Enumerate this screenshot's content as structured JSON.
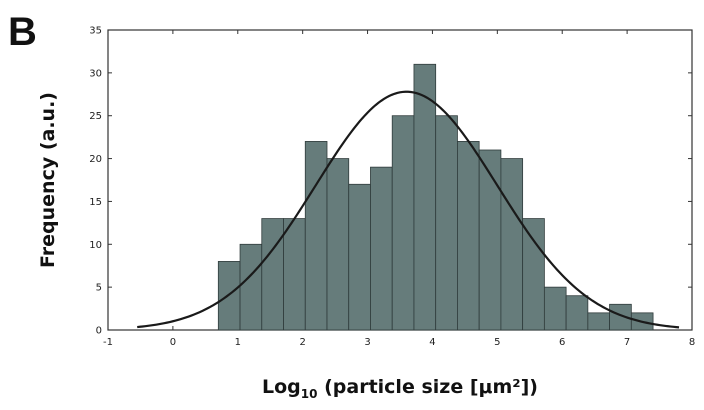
{
  "panel_label": "B",
  "chart_data": {
    "type": "bar",
    "title": "",
    "ylabel": "Frequency (a.u.)",
    "xlabel": {
      "prefix": "Log",
      "subscript": "10",
      "suffix": " (particle size [μm²])"
    },
    "xlim": [
      -1,
      8
    ],
    "ylim": [
      0,
      35
    ],
    "xticks": [
      -1,
      0,
      1,
      2,
      3,
      4,
      5,
      6,
      7,
      8
    ],
    "yticks": [
      0,
      5,
      10,
      15,
      20,
      25,
      30,
      35
    ],
    "bin_edges": [
      0.7,
      1.035,
      1.37,
      1.705,
      2.04,
      2.375,
      2.71,
      3.045,
      3.38,
      3.715,
      4.05,
      4.385,
      4.72,
      5.055,
      5.39,
      5.725,
      6.06,
      6.395,
      6.73,
      7.065,
      7.4
    ],
    "values": [
      8,
      10,
      13,
      13,
      22,
      20,
      17,
      19,
      25,
      31,
      25,
      22,
      21,
      20,
      13,
      5,
      4,
      2,
      3,
      2
    ],
    "fit_curve": {
      "type": "gaussian",
      "mean": 3.6,
      "sd": 1.4,
      "amplitude": 27.8,
      "x_range": [
        -0.55,
        7.8
      ]
    },
    "colors": {
      "bar_fill": "#667c7b",
      "bar_edge": "#2f3b3b",
      "curve": "#1a1a1a",
      "axis": "#333333"
    }
  }
}
